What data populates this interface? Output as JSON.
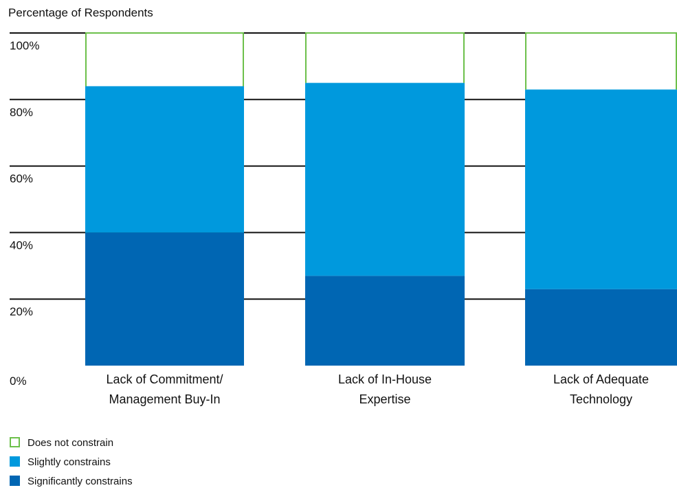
{
  "chart_data": {
    "type": "bar",
    "stacked": true,
    "title": "",
    "ylabel": "Percentage of Respondents",
    "xlabel": "",
    "ylim": [
      0,
      100
    ],
    "y_ticks": [
      0,
      20,
      40,
      60,
      80,
      100
    ],
    "y_tick_labels": [
      "0%",
      "20%",
      "40%",
      "60%",
      "80%",
      "100%"
    ],
    "grid": true,
    "legend_position": "bottom-left",
    "categories": [
      "Lack of Commitment/ Management Buy-In",
      "Lack of In-House Expertise",
      "Lack of Adequate Technology"
    ],
    "category_lines": [
      [
        "Lack of Commitment/",
        "Management Buy-In"
      ],
      [
        "Lack of In-House",
        "Expertise"
      ],
      [
        "Lack of Adequate",
        "Technology"
      ]
    ],
    "series": [
      {
        "name": "Significantly constrains",
        "values": [
          40,
          27,
          23
        ],
        "color": "#0066b3",
        "style": "filled"
      },
      {
        "name": "Slightly constrains",
        "values": [
          44,
          58,
          60
        ],
        "color": "#0099dd",
        "style": "filled"
      },
      {
        "name": "Does not constrain",
        "values": [
          16,
          15,
          17
        ],
        "color": "#6cc04a",
        "style": "outline"
      }
    ],
    "legend_order": [
      "Does not constrain",
      "Slightly constrains",
      "Significantly constrains"
    ]
  }
}
